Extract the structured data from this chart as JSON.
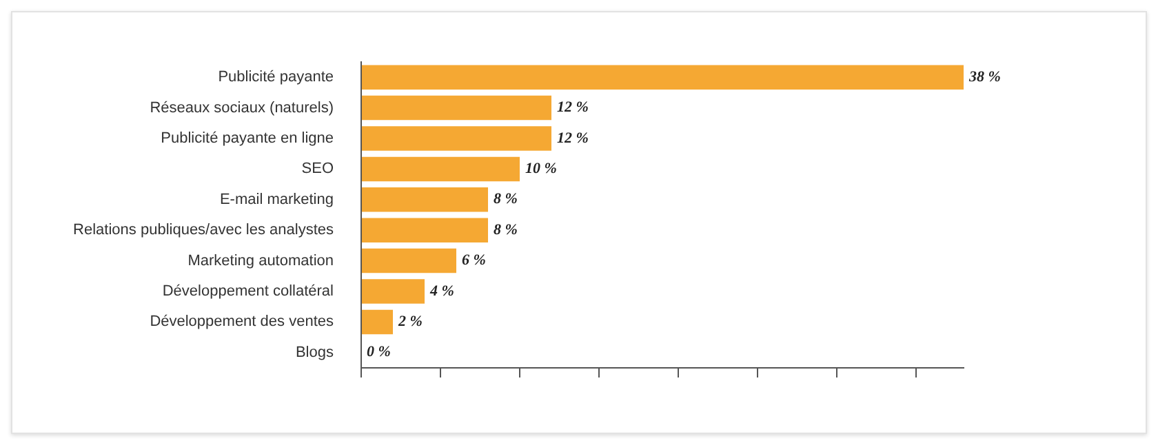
{
  "chart_data": {
    "type": "bar",
    "orientation": "horizontal",
    "categories": [
      "Publicité payante",
      "Réseaux sociaux (naturels)",
      "Publicité payante en ligne",
      "SEO",
      "E-mail marketing",
      "Relations publiques/avec les analystes",
      "Marketing automation",
      "Développement collatéral",
      "Développement des ventes",
      "Blogs"
    ],
    "values": [
      38,
      12,
      12,
      10,
      8,
      8,
      6,
      4,
      2,
      0
    ],
    "value_labels": [
      "38 %",
      "12 %",
      "12 %",
      "10 %",
      "8 %",
      "8 %",
      "6 %",
      "4 %",
      "2 %",
      "0 %"
    ],
    "color": "#f5a833",
    "xlim": [
      0,
      38
    ],
    "xticks": [
      {
        "value": 0,
        "label": null
      },
      {
        "value": 5,
        "label": null
      },
      {
        "value": 10,
        "label": null
      },
      {
        "value": 15,
        "label": null
      },
      {
        "value": 20,
        "label": null
      },
      {
        "value": 25,
        "label": null
      },
      {
        "value": 30,
        "label": null
      },
      {
        "value": 35,
        "label": null
      }
    ],
    "tick_labels": "y",
    "grid": false,
    "legend": false
  }
}
